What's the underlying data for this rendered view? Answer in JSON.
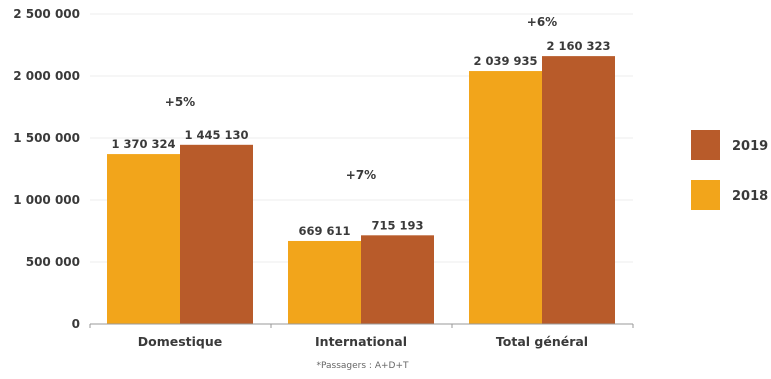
{
  "chart_data": {
    "type": "bar",
    "categories": [
      "Domestique",
      "International",
      "Total général"
    ],
    "series": [
      {
        "name": "2018",
        "values": [
          1370324,
          669611,
          2039935
        ],
        "labels": [
          "1 370 324",
          "669 611",
          "2 039 935"
        ],
        "color": "#F2A51B"
      },
      {
        "name": "2019",
        "values": [
          1445130,
          715193,
          2160323
        ],
        "labels": [
          "1 445 130",
          "715 193",
          "2 160 323"
        ],
        "color": "#B85B2A"
      }
    ],
    "growth_labels": [
      "+5%",
      "+7%",
      "+6%"
    ],
    "yticks": [
      {
        "value": 0,
        "label": "0"
      },
      {
        "value": 500000,
        "label": "500 000"
      },
      {
        "value": 1000000,
        "label": "1 000 000"
      },
      {
        "value": 1500000,
        "label": "1 500 000"
      },
      {
        "value": 2000000,
        "label": "2 000 000"
      },
      {
        "value": 2500000,
        "label": "2 500 000"
      }
    ],
    "ylim": [
      0,
      2500000
    ],
    "grid": true,
    "legend": {
      "position": "right",
      "entries": [
        "2019",
        "2018"
      ]
    },
    "xlabel": "",
    "ylabel": ""
  },
  "footnote": "*Passagers : A+D+T",
  "colors": {
    "grid": "#eeeeee",
    "axis": "#999999",
    "text": "#3a3a3a"
  }
}
